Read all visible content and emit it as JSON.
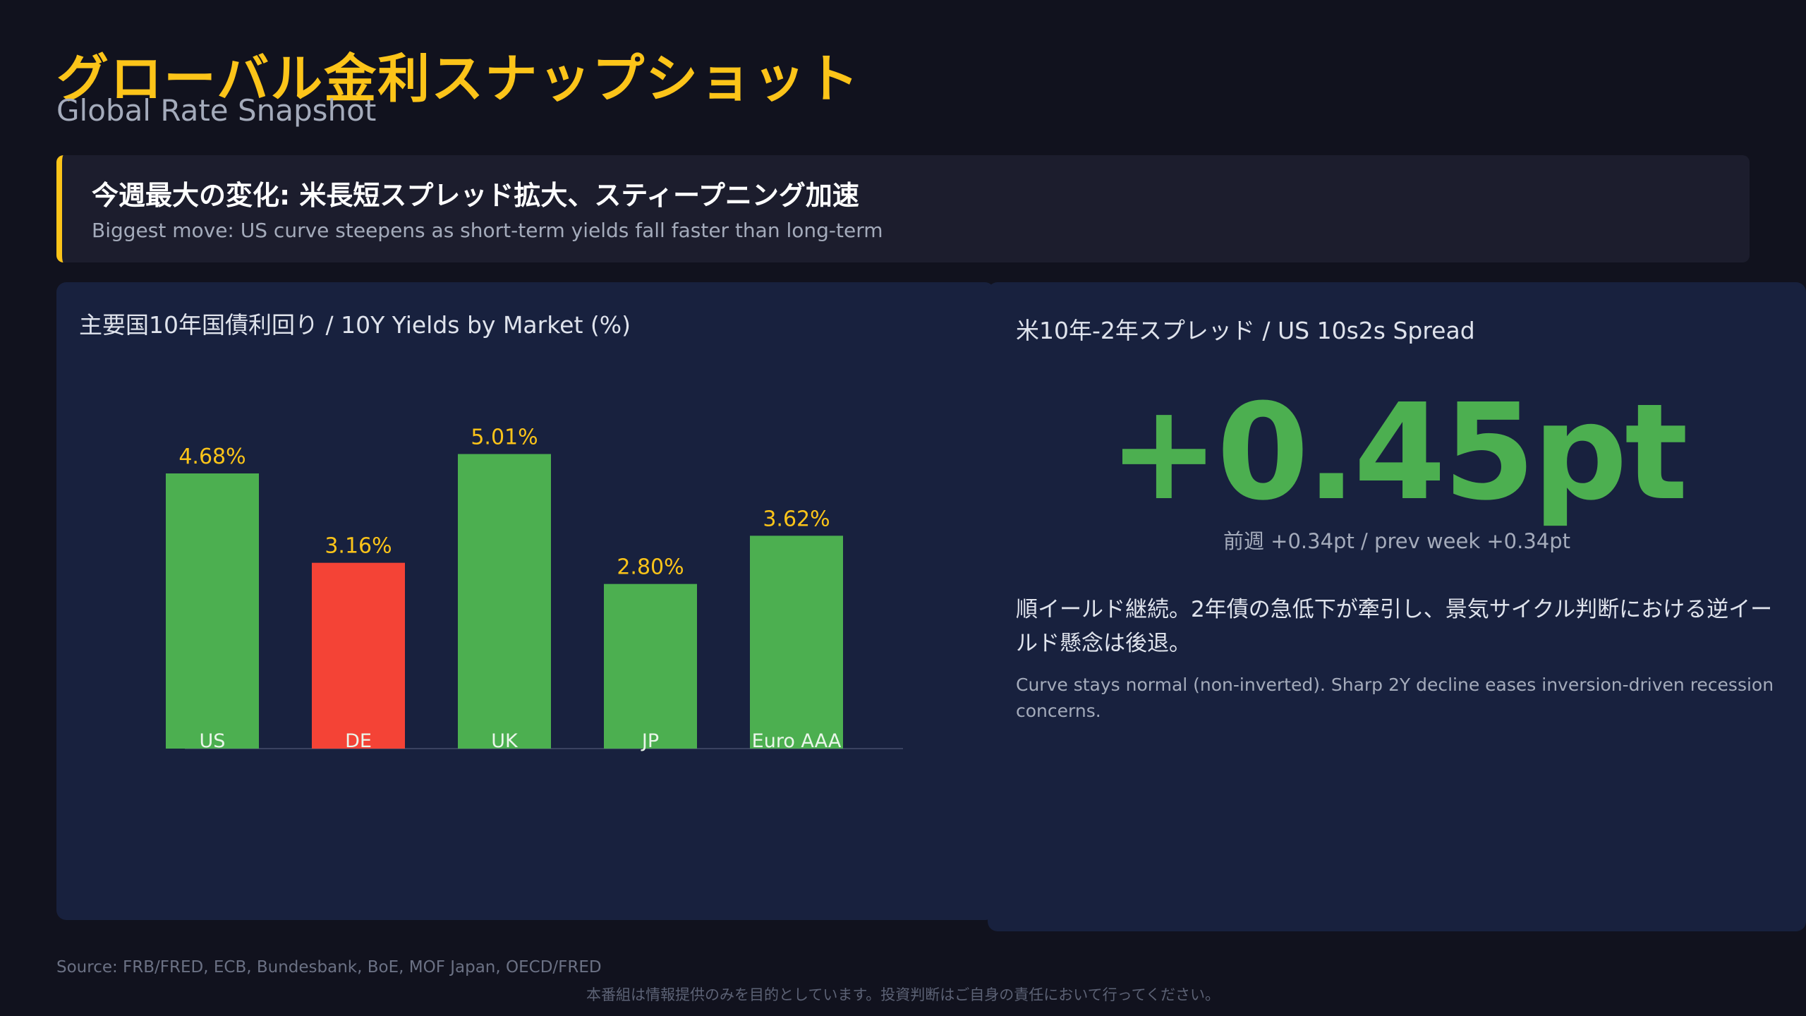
{
  "header": {
    "title": "グローバル金利スナップショット",
    "subtitle": "Global Rate Snapshot"
  },
  "headline": {
    "main": "今週最大の変化: 米長短スプレッド拡大、スティープニング加速",
    "sub": "Biggest move: US curve steepens as short-term yields fall faster than long-term",
    "accent_color": "#fcc419"
  },
  "chart_panel": {
    "title": "主要国10年国債利回り / 10Y Yields by Market (%)"
  },
  "chart_data": {
    "type": "bar",
    "title": "主要国10年国債利回り / 10Y Yields by Market (%)",
    "categories": [
      "US",
      "DE",
      "UK",
      "JP",
      "Euro AAA"
    ],
    "values": [
      4.68,
      3.16,
      5.01,
      2.8,
      3.62
    ],
    "data_labels": [
      "4.68%",
      "3.16%",
      "5.01%",
      "2.80%",
      "3.62%"
    ],
    "bar_colors": [
      "#4caf50",
      "#f44336",
      "#4caf50",
      "#4caf50",
      "#4caf50"
    ],
    "ylim": [
      0,
      6
    ],
    "grid": false,
    "legend": "none"
  },
  "spread_panel": {
    "title": "米10年-2年スプレッド / US 10s2s Spread",
    "value": "+0.45pt",
    "value_color": "#4caf50",
    "prev_week": "前週 +0.34pt / prev week +0.34pt",
    "comment_ja": "順イールド継続。2年債の急低下が牽引し、景気サイクル判断における逆イールド懸念は後退。",
    "comment_en": "Curve stays normal (non-inverted). Sharp 2Y decline eases inversion-driven recession concerns."
  },
  "footer": {
    "source": "Source: FRB/FRED, ECB, Bundesbank, BoE, MOF Japan, OECD/FRED",
    "disclaimer": "本番組は情報提供のみを目的としています。投資判断はご自身の責任において行ってください。"
  }
}
